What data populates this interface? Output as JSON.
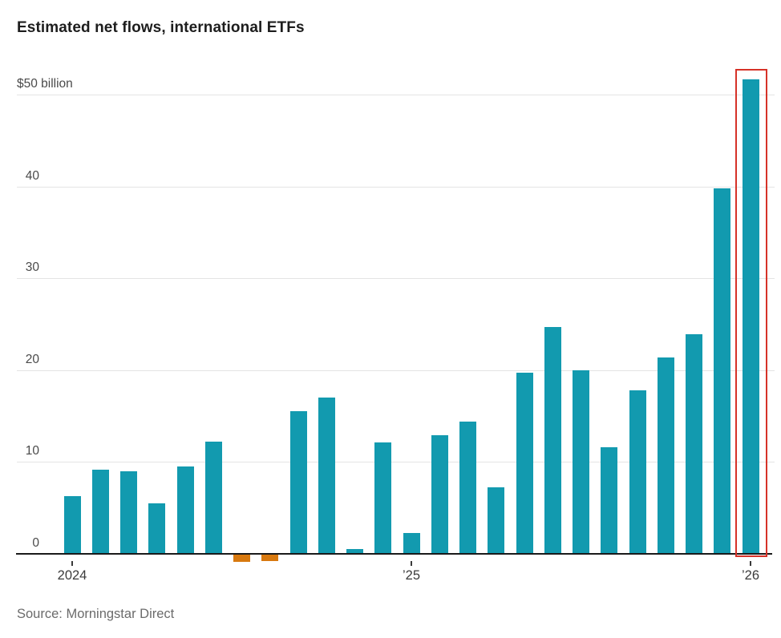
{
  "header": {
    "title": "Estimated net flows, international ETFs"
  },
  "source": {
    "text": "Source: Morningstar Direct"
  },
  "chart_data": {
    "type": "bar",
    "title": "Estimated net flows, international ETFs",
    "unit": "billions of dollars",
    "categories": [
      "Jan 2024",
      "Feb 2024",
      "Mar 2024",
      "Apr 2024",
      "May 2024",
      "Jun 2024",
      "Jul 2024",
      "Aug 2024",
      "Sep 2024",
      "Oct 2024",
      "Nov 2024",
      "Dec 2024",
      "Jan 2025",
      "Feb 2025",
      "Mar 2025",
      "Apr 2025",
      "May 2025",
      "Jun 2025",
      "Jul 2025",
      "Aug 2025",
      "Sep 2025",
      "Oct 2025",
      "Nov 2025",
      "Dec 2025",
      "Jan 2026"
    ],
    "values": [
      6.3,
      9.2,
      9.0,
      5.5,
      9.5,
      12.2,
      -0.8,
      -0.7,
      15.5,
      17.0,
      0.5,
      12.1,
      2.3,
      12.9,
      14.4,
      7.2,
      19.7,
      24.7,
      20.0,
      11.6,
      17.8,
      21.4,
      23.9,
      39.8,
      51.7
    ],
    "ylim": [
      -2,
      54
    ],
    "grid": true,
    "legend": false,
    "yticks": [
      {
        "value": 50,
        "label": "$50 billion"
      },
      {
        "value": 40,
        "label": "40"
      },
      {
        "value": 30,
        "label": "30"
      },
      {
        "value": 20,
        "label": "20"
      },
      {
        "value": 10,
        "label": "10"
      },
      {
        "value": 0,
        "label": "0"
      }
    ],
    "xticks": [
      {
        "index": 0,
        "label": "2024"
      },
      {
        "index": 12,
        "label": "’25"
      },
      {
        "index": 24,
        "label": "’26"
      }
    ],
    "highlight": {
      "category": "Jan 2026",
      "style": "red-outline-box"
    },
    "colors": {
      "positive_bar": "#129aaf",
      "negative_bar": "#d8790f",
      "highlight_box": "#d63228",
      "gridline": "#e4e4e4",
      "zero_line": "#1a1a1a"
    }
  }
}
